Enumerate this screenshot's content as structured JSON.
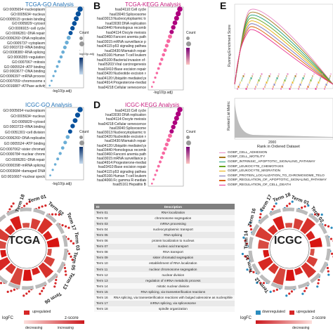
{
  "panels": {
    "a": {
      "title": "TCGA-GO Analysis",
      "terms": [
        "GO:0005654~nucleoplasm",
        "GO:0005634~nucleus",
        "GO:0005515~protein binding",
        "GO:0005829~cytosol",
        "GO:0006915~cell cycle",
        "GO:0006281~DNA repair",
        "GO:0006260~DNA replication",
        "GO:0005737~cytoplasm",
        "GO:0003723~RNA binding",
        "GO:0008380~RNA splicing",
        "GO:0006355~regulation",
        "GO:0007067~mitosis",
        "GO:0005524~ATP binding",
        "GO:0003677~DNA binding",
        "GO:0006397~mRNA processing",
        "GO:0007059~chromosome segregation",
        "GO:0016887~ATPase activity"
      ],
      "xlabel": "-log10(p.adj)"
    },
    "b": {
      "title": "TCGA-KEGG Analysis",
      "terms": [
        "hsa04110:Cell cycle",
        "hsa03040:Spliceosome",
        "hsa03013:Nucleocytoplasmic transport",
        "hsa03030:DNA replication",
        "hsa03440:Homologous recombination",
        "hsa04114:Oocyte meiosis",
        "hsa03460:Fanconi anemia pathway",
        "hsa03015:mRNA surveillance pathway",
        "hsa04115:p53 signaling pathway",
        "hsa03430:Mismatch repair",
        "hsa05166:Human T-cell leukemia virus 1 infection",
        "hsa05100:Bacterial invasion of epithelial cells",
        "hsa05203:Viral carcinogenesis",
        "hsa03410:Base excision repair",
        "hsa03420:Nucleotide excision repair",
        "hsa04120:Ubiquitin mediated proteolysis",
        "hsa04914:Progesterone-mediated oocyte maturation",
        "hsa04218:Cellular senescence"
      ],
      "xlabel": "-log10(p.adj)"
    },
    "c": {
      "title": "ICGC-GO Analysis",
      "terms": [
        "GO:0005654~nucleoplasm",
        "GO:0005634~nucleus",
        "GO:0005829~cytosol",
        "GO:0003723~RNA binding",
        "GO:0051301~cell division",
        "GO:0006260~DNA replication",
        "GO:0005524~ATP binding",
        "GO:0007062~sister chromatid cohesion",
        "GO:0000784~nuclear chromosome, telomeric region",
        "GO:0006281~DNA repair",
        "GO:0000398~mRNA splicing, via spliceosome",
        "GO:0003684~damaged DNA binding",
        "GO:0016607~nuclear speck"
      ],
      "xlabel": "-log10(p.adj)"
    },
    "d": {
      "title": "ICGC-KEGG Analysis",
      "terms": [
        "hsa04110:Cell cycle",
        "hsa03030:DNA replication",
        "hsa04114:Oocyte meiosis",
        "hsa04218:Cellular senescence",
        "hsa03040:Spliceosome",
        "hsa03013:Nucleocytoplasmic transport",
        "hsa03420:Nucleotide excision repair",
        "hsa03430:Mismatch repair",
        "hsa04120:Ubiquitin mediated proteolysis",
        "hsa03440:Homologous recombination",
        "hsa03460:Fanconi anemia pathway",
        "hsa03015:mRNA surveillance pathway",
        "hsa04914:Progesterone-mediated oocyte maturation",
        "hsa03410:Base excision repair",
        "hsa04115:p53 signaling pathway",
        "hsa05166:Human T-cell leukemia virus 1 infection",
        "hsa04066:Fc gamma R-mediated phagocytosis",
        "hsa05161:Hepatitis B"
      ],
      "xlabel": "-log10(p.adj)"
    },
    "e": {
      "ylabel_top": "Running Enrichment Score",
      "ylabel_bottom": "Ranked List Metric",
      "xlabel": "Rank in Ordered Dataset",
      "xtick": "2000"
    },
    "legend_e": [
      "GOBP_CELL_ADHESION",
      "GOBP_CELL_MOTILITY",
      "GOBP_INTRINSIC_APOPTOTIC_SIGNALING_PATHWAY",
      "GOBP_LEUKOCYTE_CHEMOTAXIS",
      "GOBP_LEUKOCYTE_MIGRATION",
      "GOBP_PROTEIN_LOCALIZATION_TO_CHROMOSOME_TELO",
      "GOBP_REGULATION_OF_APOPTOTIC_SIGNALING_PATHWAY",
      "GOBP_REGULATION_OF_CELL_DEATH"
    ],
    "legend_e_colors": [
      "#e78ac3",
      "#a6761d",
      "#1b9e77",
      "#66a61e",
      "#e6ab02",
      "#7570b3",
      "#d95f02",
      "#e7298a"
    ]
  },
  "labels": {
    "a": "A",
    "b": "B",
    "d": "D",
    "e": "E"
  },
  "legend_headers": {
    "count": "Count",
    "padj": "-log10(p.adj)"
  },
  "circle_left": {
    "center": "TCGA",
    "term_labels": [
      "Term 18",
      "Term 01",
      "Term 02",
      "Term 17",
      "Term 03",
      "Term 05",
      "Term 13",
      "Term 06"
    ],
    "legend_logfc": "logFC",
    "legend_up": "upregulated",
    "legend_z": "z-score",
    "legend_dec": "decreasing",
    "legend_inc": "increasing"
  },
  "circle_right": {
    "center": "ICGC",
    "term_labels": [
      "Term 17",
      "Term 18",
      "Term 01",
      "Term 02",
      "Term 16",
      "Term 14",
      "Term 15",
      "Term 12"
    ],
    "legend_logfc": "logFC",
    "legend_down": "downregulated",
    "legend_up": "upregulated",
    "legend_z": "z-score",
    "legend_dec": "decreasing"
  },
  "table": {
    "headers": [
      "ID",
      "Description"
    ],
    "rows": [
      [
        "Term 01",
        "RNA localization"
      ],
      [
        "Term 02",
        "chromosome segregation"
      ],
      [
        "Term 03",
        "mRNA processing"
      ],
      [
        "Term 04",
        "nucleocytoplasmic transport"
      ],
      [
        "Term 05",
        "RNA splicing"
      ],
      [
        "Term 06",
        "protein localization to nucleus"
      ],
      [
        "Term 07",
        "nucleic acid transport"
      ],
      [
        "Term 08",
        "RNA transport"
      ],
      [
        "Term 09",
        "sister chromatid segregation"
      ],
      [
        "Term 10",
        "establishment of RNA localization"
      ],
      [
        "Term 11",
        "nuclear chromosome segregation"
      ],
      [
        "Term 12",
        "nuclear division"
      ],
      [
        "Term 13",
        "regulation of mRNA metabolic process"
      ],
      [
        "Term 14",
        "mitotic nuclear division"
      ],
      [
        "Term 15",
        "RNA splicing, via transesterification reactions"
      ],
      [
        "Term 16",
        "RNA splicing, via transesterification reactions with bulged adenosine as nucleophile"
      ],
      [
        "Term 17",
        "mRNA splicing, via spliceosome"
      ],
      [
        "Term 18",
        "spindle organization"
      ]
    ]
  }
}
